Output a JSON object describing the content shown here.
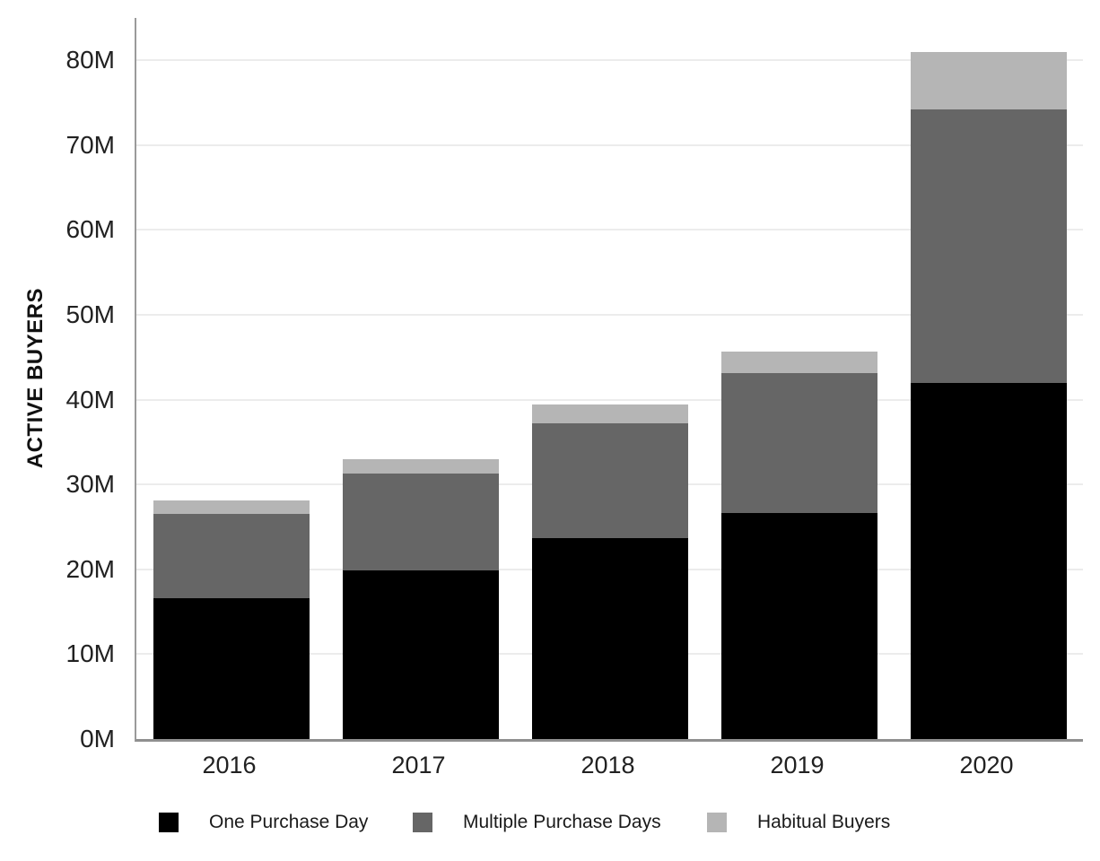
{
  "chart_data": {
    "type": "bar",
    "stacked": true,
    "title": "",
    "ylabel": "ACTIVE BUYERS",
    "xlabel": "",
    "categories": [
      "2016",
      "2017",
      "2018",
      "2019",
      "2020"
    ],
    "series": [
      {
        "name": "One Purchase Day",
        "color": "#000000",
        "values": [
          16.6,
          19.9,
          23.7,
          26.6,
          42.0
        ]
      },
      {
        "name": "Multiple Purchase Days",
        "color": "#666666",
        "values": [
          9.9,
          11.4,
          13.5,
          16.5,
          32.2
        ]
      },
      {
        "name": "Habitual Buyers",
        "color": "#b5b5b5",
        "values": [
          1.6,
          1.7,
          2.2,
          2.6,
          6.8
        ]
      }
    ],
    "stack_totals": [
      28.1,
      33.0,
      39.4,
      45.7,
      81.0
    ],
    "y_ticks": [
      {
        "value": 0,
        "label": "0M"
      },
      {
        "value": 10,
        "label": "10M"
      },
      {
        "value": 20,
        "label": "20M"
      },
      {
        "value": 30,
        "label": "30M"
      },
      {
        "value": 40,
        "label": "40M"
      },
      {
        "value": 50,
        "label": "50M"
      },
      {
        "value": 60,
        "label": "60M"
      },
      {
        "value": 70,
        "label": "70M"
      },
      {
        "value": 80,
        "label": "80M"
      }
    ],
    "ylim": [
      0,
      85
    ],
    "grid": true,
    "legend_position": "bottom",
    "colors": {
      "gridline": "#ececec",
      "axis": "#9a9a9a",
      "tick_text": "#212121",
      "legend_text": "#1a1a1a"
    }
  }
}
